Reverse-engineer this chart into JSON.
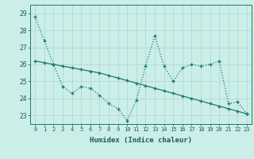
{
  "xlabel": "Humidex (Indice chaleur)",
  "bg_color": "#cceee8",
  "line_color": "#1a7a6e",
  "xlim": [
    -0.5,
    23.5
  ],
  "ylim": [
    22.5,
    29.5
  ],
  "yticks": [
    23,
    24,
    25,
    26,
    27,
    28,
    29
  ],
  "series1_x": [
    0,
    1,
    2,
    3,
    4,
    5,
    6,
    7,
    8,
    9,
    10,
    11,
    12,
    13,
    14,
    15,
    16,
    17,
    18,
    19,
    20,
    21,
    22,
    23
  ],
  "series1_y": [
    28.8,
    27.4,
    26.0,
    24.7,
    24.3,
    24.7,
    24.6,
    24.2,
    23.7,
    23.4,
    22.7,
    23.9,
    25.9,
    27.7,
    25.9,
    25.0,
    25.8,
    26.0,
    25.9,
    26.0,
    26.2,
    23.7,
    23.8,
    23.1
  ],
  "series2_x": [
    0,
    1,
    2,
    3,
    4,
    5,
    6,
    7,
    8,
    9,
    10,
    11,
    12,
    13,
    14,
    15,
    16,
    17,
    18,
    19,
    20,
    21,
    22,
    23
  ],
  "series2_y": [
    26.2,
    26.1,
    26.0,
    25.9,
    25.8,
    25.7,
    25.6,
    25.5,
    25.35,
    25.2,
    25.05,
    24.9,
    24.75,
    24.6,
    24.45,
    24.3,
    24.15,
    24.0,
    23.85,
    23.7,
    23.55,
    23.4,
    23.25,
    23.1
  ],
  "xtick_fontsize": 5.0,
  "ytick_fontsize": 5.5,
  "xlabel_fontsize": 6.5
}
